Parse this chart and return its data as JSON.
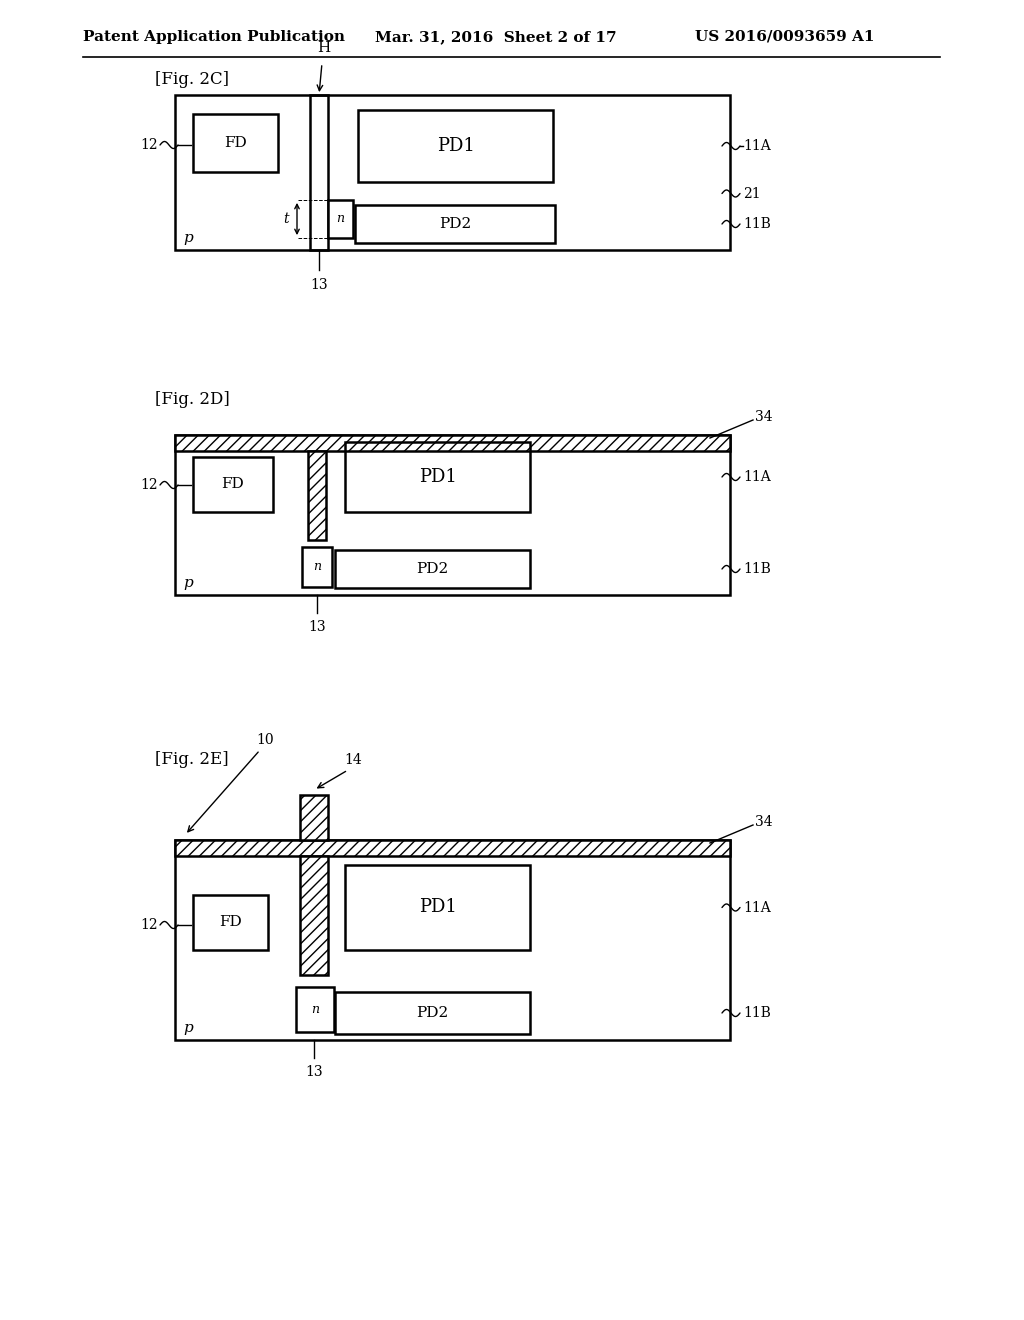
{
  "bg_color": "#ffffff",
  "header_left": "Patent Application Publication",
  "header_mid": "Mar. 31, 2016  Sheet 2 of 17",
  "header_right": "US 2016/0093659 A1",
  "fig2c_label": "[Fig. 2C]",
  "fig2d_label": "[Fig. 2D]",
  "fig2e_label": "[Fig. 2E]",
  "line_color": "#000000",
  "lw": 1.8,
  "lw_thin": 1.0
}
